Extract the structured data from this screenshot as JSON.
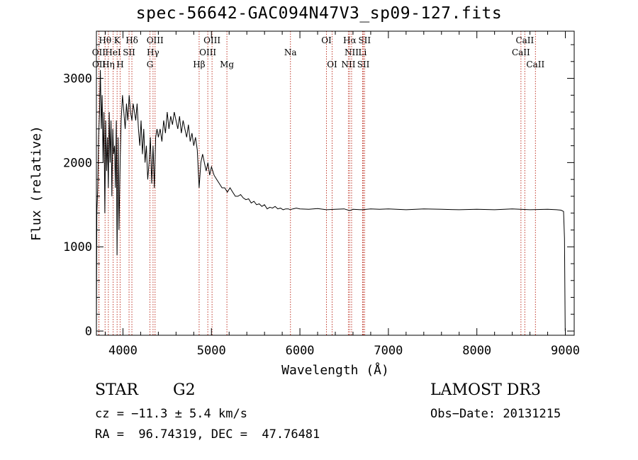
{
  "chart_data": {
    "type": "line",
    "title": "spec-56642-GAC094N47V3_sp09-127.fits",
    "xlabel": "Wavelength (Å)",
    "ylabel": "Flux (relative)",
    "xlim": [
      3700,
      9100
    ],
    "ylim": [
      -50,
      3560
    ],
    "x_ticks": [
      4000,
      5000,
      6000,
      7000,
      8000,
      9000
    ],
    "y_ticks": [
      0,
      1000,
      2000,
      3000
    ],
    "series": [
      {
        "name": "flux",
        "x": [
          3700,
          3705,
          3715,
          3725,
          3735,
          3745,
          3755,
          3765,
          3775,
          3785,
          3795,
          3805,
          3815,
          3825,
          3835,
          3845,
          3855,
          3865,
          3875,
          3885,
          3895,
          3905,
          3915,
          3925,
          3933,
          3945,
          3955,
          3968,
          3980,
          3995,
          4010,
          4025,
          4040,
          4055,
          4070,
          4085,
          4101,
          4115,
          4130,
          4145,
          4160,
          4175,
          4190,
          4205,
          4220,
          4235,
          4250,
          4265,
          4280,
          4295,
          4310,
          4325,
          4340,
          4355,
          4370,
          4385,
          4400,
          4420,
          4440,
          4460,
          4480,
          4500,
          4520,
          4540,
          4560,
          4580,
          4600,
          4620,
          4640,
          4660,
          4680,
          4700,
          4720,
          4740,
          4760,
          4780,
          4800,
          4820,
          4840,
          4861,
          4880,
          4900,
          4920,
          4940,
          4960,
          4980,
          5000,
          5030,
          5060,
          5090,
          5120,
          5150,
          5180,
          5210,
          5240,
          5270,
          5300,
          5330,
          5360,
          5390,
          5420,
          5450,
          5480,
          5510,
          5540,
          5570,
          5600,
          5630,
          5660,
          5690,
          5720,
          5750,
          5780,
          5810,
          5840,
          5870,
          5890,
          5920,
          5960,
          6000,
          6100,
          6200,
          6300,
          6400,
          6500,
          6563,
          6600,
          6700,
          6800,
          6900,
          7000,
          7200,
          7400,
          7600,
          7800,
          8000,
          8200,
          8400,
          8600,
          8800,
          8900,
          8950,
          8980,
          8990,
          8998
        ],
        "y": [
          0,
          1400,
          1700,
          2300,
          2600,
          3100,
          2400,
          2800,
          2000,
          2600,
          1400,
          2500,
          1900,
          2300,
          1700,
          2600,
          2000,
          2500,
          1600,
          2400,
          2100,
          2200,
          1700,
          2500,
          900,
          2300,
          1200,
          2000,
          2500,
          2800,
          2600,
          2400,
          2700,
          2500,
          2800,
          2600,
          2500,
          2700,
          2600,
          2500,
          2700,
          2400,
          2200,
          2500,
          2100,
          2400,
          2000,
          2200,
          1800,
          2000,
          2300,
          1750,
          2200,
          1700,
          2300,
          2400,
          2300,
          2400,
          2250,
          2500,
          2350,
          2600,
          2400,
          2550,
          2450,
          2600,
          2500,
          2400,
          2550,
          2350,
          2500,
          2400,
          2300,
          2450,
          2250,
          2350,
          2200,
          2300,
          2150,
          1700,
          2000,
          2100,
          2000,
          1900,
          2000,
          1850,
          1950,
          1850,
          1800,
          1750,
          1700,
          1700,
          1650,
          1700,
          1650,
          1600,
          1600,
          1620,
          1580,
          1560,
          1570,
          1520,
          1540,
          1500,
          1510,
          1480,
          1500,
          1450,
          1470,
          1460,
          1480,
          1450,
          1460,
          1440,
          1450,
          1450,
          1440,
          1450,
          1460,
          1450,
          1445,
          1455,
          1440,
          1445,
          1450,
          1430,
          1445,
          1440,
          1450,
          1445,
          1450,
          1440,
          1450,
          1445,
          1440,
          1445,
          1440,
          1450,
          1440,
          1445,
          1440,
          1435,
          1420,
          1100,
          0
        ]
      }
    ],
    "lines": [
      {
        "label": "Hθ",
        "wl": 3798,
        "row": 0
      },
      {
        "label": "K",
        "wl": 3934,
        "row": 0
      },
      {
        "label": "Hδ",
        "wl": 4101,
        "row": 0
      },
      {
        "label": "OIII",
        "wl": 4363,
        "row": 0
      },
      {
        "label": "OIII",
        "wl": 5007,
        "row": 0
      },
      {
        "label": "OI",
        "wl": 6300,
        "row": 0
      },
      {
        "label": "Hα",
        "wl": 6563,
        "row": 0
      },
      {
        "label": "SII",
        "wl": 6731,
        "row": 0
      },
      {
        "label": "CaII",
        "wl": 8542,
        "row": 0
      },
      {
        "label": "OII",
        "wl": 3727,
        "row": 1
      },
      {
        "label": "HeI",
        "wl": 3889,
        "row": 1
      },
      {
        "label": "SII",
        "wl": 4069,
        "row": 1
      },
      {
        "label": "Hγ",
        "wl": 4340,
        "row": 1
      },
      {
        "label": "OIII",
        "wl": 4959,
        "row": 1
      },
      {
        "label": "Na",
        "wl": 5893,
        "row": 1
      },
      {
        "label": "NII",
        "wl": 6584,
        "row": 1
      },
      {
        "label": "Li",
        "wl": 6708,
        "row": 1
      },
      {
        "label": "CaII",
        "wl": 8498,
        "row": 1
      },
      {
        "label": "OII",
        "wl": 3729,
        "row": 2
      },
      {
        "label": "Hη",
        "wl": 3835,
        "row": 2
      },
      {
        "label": "H",
        "wl": 3968,
        "row": 2
      },
      {
        "label": "G",
        "wl": 4305,
        "row": 2
      },
      {
        "label": "Hβ",
        "wl": 4861,
        "row": 2
      },
      {
        "label": "Mg",
        "wl": 5175,
        "row": 2
      },
      {
        "label": "OI",
        "wl": 6364,
        "row": 2
      },
      {
        "label": "NII",
        "wl": 6548,
        "row": 2
      },
      {
        "label": "SII",
        "wl": 6717,
        "row": 2
      },
      {
        "label": "CaII",
        "wl": 8662,
        "row": 2
      }
    ]
  },
  "info": {
    "class_label": "STAR",
    "subclass": "G2",
    "survey": "LAMOST DR3",
    "cz": "cz = −11.3 ± 5.4 km/s",
    "obs_date": "Obs−Date: 20131215",
    "radec": "RA =  96.74319, DEC =  47.76481"
  },
  "colors": {
    "line_marker": "#c0392b",
    "axis": "#000000"
  }
}
